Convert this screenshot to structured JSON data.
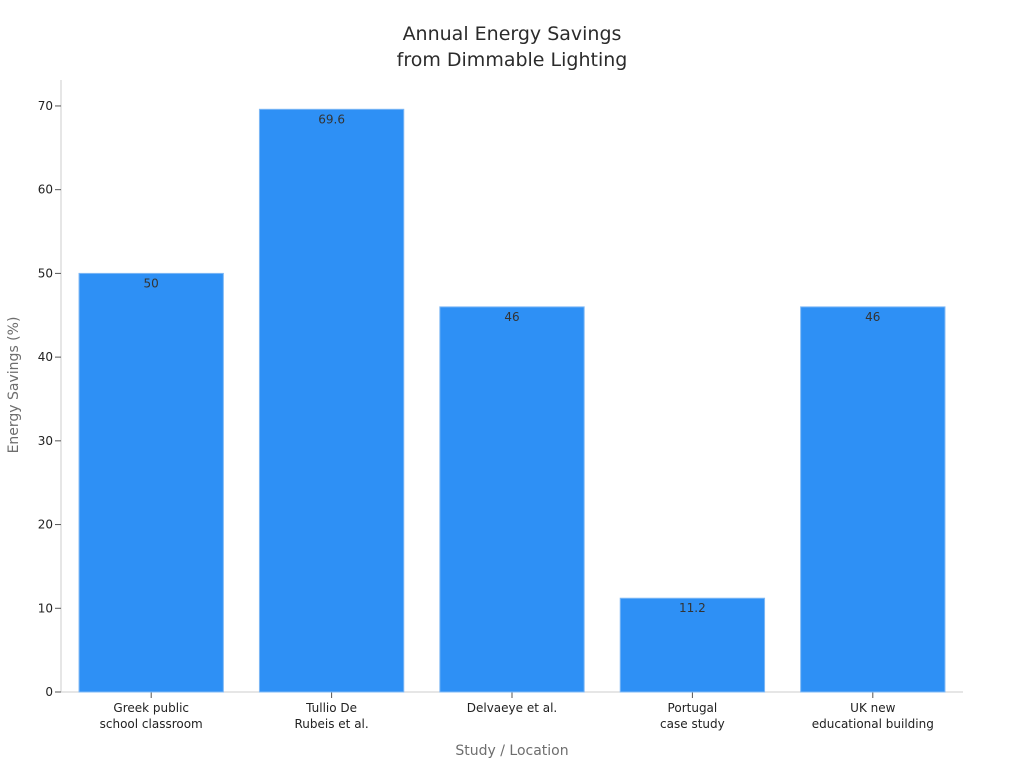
{
  "chart_data": {
    "type": "bar",
    "title": [
      "Annual Energy Savings",
      "from Dimmable Lighting"
    ],
    "xlabel": "Study / Location",
    "ylabel": "Energy Savings (%)",
    "categories": [
      [
        "Greek public",
        "school classroom"
      ],
      [
        "Tullio De",
        "Rubeis et al."
      ],
      [
        "Delvaeye et al."
      ],
      [
        "Portugal",
        "case study"
      ],
      [
        "UK new",
        "educational building"
      ]
    ],
    "values": [
      50,
      69.6,
      46,
      11.2,
      46
    ],
    "data_labels": [
      "50",
      "69.6",
      "46",
      "11.2",
      "46"
    ],
    "ylim": [
      0,
      73.1
    ],
    "yticks": [
      0,
      10,
      20,
      30,
      40,
      50,
      60,
      70
    ],
    "bar_color": "#2e90f5",
    "grid": false,
    "legend": "none"
  }
}
